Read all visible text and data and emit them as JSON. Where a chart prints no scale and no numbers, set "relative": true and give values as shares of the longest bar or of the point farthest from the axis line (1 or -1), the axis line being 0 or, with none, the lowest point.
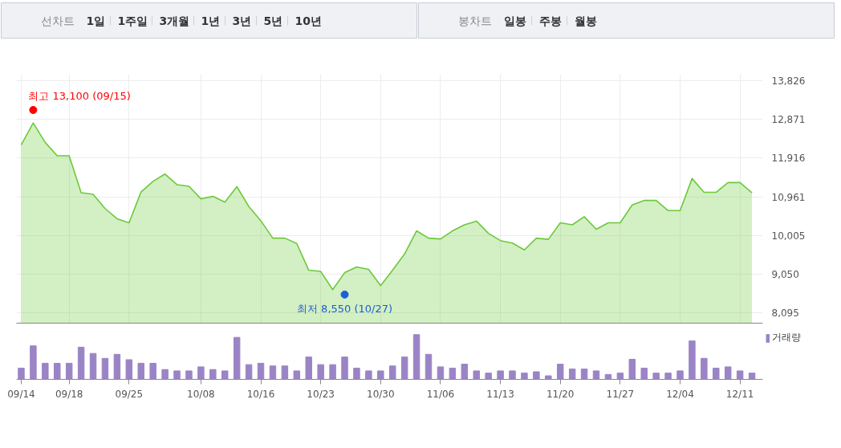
{
  "chart_data": [
    {
      "type": "other",
      "annotations": [
        "선차트",
        "1일",
        "1주일",
        "3개월",
        "1년",
        "3년",
        "5년",
        "10년"
      ]
    },
    {
      "type": "other",
      "annotations": [
        "봉차트",
        "일봉",
        "주봉",
        "월봉"
      ]
    },
    {
      "type": "area",
      "series": [
        {
          "type": "area",
          "color": "#6cc93a",
          "values": [
            12240,
            12780,
            12300,
            11970,
            11970,
            11060,
            11020,
            10670,
            10420,
            10320,
            11080,
            11340,
            11520,
            11260,
            11220,
            10910,
            10970,
            10830,
            11210,
            10720,
            10370,
            9940,
            9940,
            9810,
            9150,
            9120,
            8670,
            9090,
            9230,
            9170,
            8770,
            9150,
            9550,
            10120,
            9940,
            9920,
            10120,
            10270,
            10360,
            10060,
            9880,
            9820,
            9650,
            9940,
            9910,
            10320,
            10270,
            10470,
            10160,
            10320,
            10320,
            10760,
            10870,
            10870,
            10620,
            10620,
            11410,
            11070,
            11070,
            11310,
            11310,
            11060
          ]
        },
        {
          "type": "scatter",
          "values": [
            null,
            13100,
            null,
            null,
            null,
            null,
            null,
            null,
            null,
            null,
            null,
            null,
            null,
            null,
            null,
            null,
            null,
            null,
            null,
            null,
            null,
            null,
            null,
            null,
            null,
            null,
            null,
            8550,
            null,
            null,
            null,
            null,
            null,
            null,
            null,
            null,
            null,
            null,
            null,
            null,
            null,
            null,
            null,
            null,
            null,
            null,
            null,
            null,
            null,
            null,
            null,
            null,
            null,
            null,
            null,
            null,
            null,
            null,
            null,
            null,
            null,
            null
          ],
          "colors": [
            null,
            "#ff0000",
            null,
            null,
            null,
            null,
            null,
            null,
            null,
            null,
            null,
            null,
            null,
            null,
            null,
            null,
            null,
            null,
            null,
            null,
            null,
            null,
            null,
            null,
            null,
            null,
            null,
            "#1a5fd6",
            null,
            null,
            null,
            null,
            null,
            null,
            null,
            null,
            null,
            null,
            null,
            null,
            null,
            null,
            null,
            null,
            null,
            null,
            null,
            null,
            null,
            null,
            null,
            null,
            null,
            null,
            null,
            null,
            null,
            null,
            null,
            null,
            null,
            null
          ]
        }
      ],
      "annotations": [
        "최고 13,100 (09/15)",
        "최저 8,550 (10/27)"
      ],
      "ylim": [
        7845,
        13980
      ],
      "yticks": [
        {
          "value": 13826,
          "label": "13,826"
        },
        {
          "value": 12871,
          "label": "12,871"
        },
        {
          "value": 11916,
          "label": "11,916"
        },
        {
          "value": 10961,
          "label": "10,961"
        },
        {
          "value": 10005,
          "label": "10,005"
        },
        {
          "value": 9050,
          "label": "9,050"
        },
        {
          "value": 8095,
          "label": "8,095"
        }
      ],
      "grid": true,
      "tick_labels": "y",
      "legend": false
    },
    {
      "type": "bar",
      "relative": true,
      "categories": [
        "09/14",
        null,
        null,
        null,
        "09/18",
        null,
        null,
        null,
        null,
        "09/25",
        null,
        null,
        null,
        null,
        null,
        "10/08",
        null,
        null,
        null,
        null,
        "10/16",
        null,
        null,
        null,
        null,
        "10/23",
        null,
        null,
        null,
        null,
        "10/30",
        null,
        null,
        null,
        null,
        "11/06",
        null,
        null,
        null,
        null,
        "11/13",
        null,
        null,
        null,
        null,
        "11/20",
        null,
        null,
        null,
        null,
        "11/27",
        null,
        null,
        null,
        null,
        "12/04",
        null,
        null,
        null,
        null,
        "12/11",
        null
      ],
      "series": [
        {
          "name": "거래량",
          "color": "#9b84c6",
          "values": [
            0.25,
            0.75,
            0.36,
            0.36,
            0.36,
            0.72,
            0.58,
            0.47,
            0.56,
            0.44,
            0.36,
            0.36,
            0.22,
            0.19,
            0.19,
            0.28,
            0.22,
            0.19,
            0.94,
            0.33,
            0.36,
            0.3,
            0.3,
            0.19,
            0.5,
            0.33,
            0.33,
            0.5,
            0.25,
            0.19,
            0.19,
            0.3,
            0.5,
            1.0,
            0.56,
            0.28,
            0.25,
            0.34,
            0.19,
            0.14,
            0.19,
            0.19,
            0.14,
            0.17,
            0.08,
            0.34,
            0.23,
            0.23,
            0.19,
            0.11,
            0.14,
            0.45,
            0.25,
            0.14,
            0.14,
            0.19,
            0.86,
            0.47,
            0.25,
            0.28,
            0.19,
            0.14
          ]
        }
      ],
      "legend": "top right",
      "tick_labels": "x",
      "grid": false
    }
  ]
}
